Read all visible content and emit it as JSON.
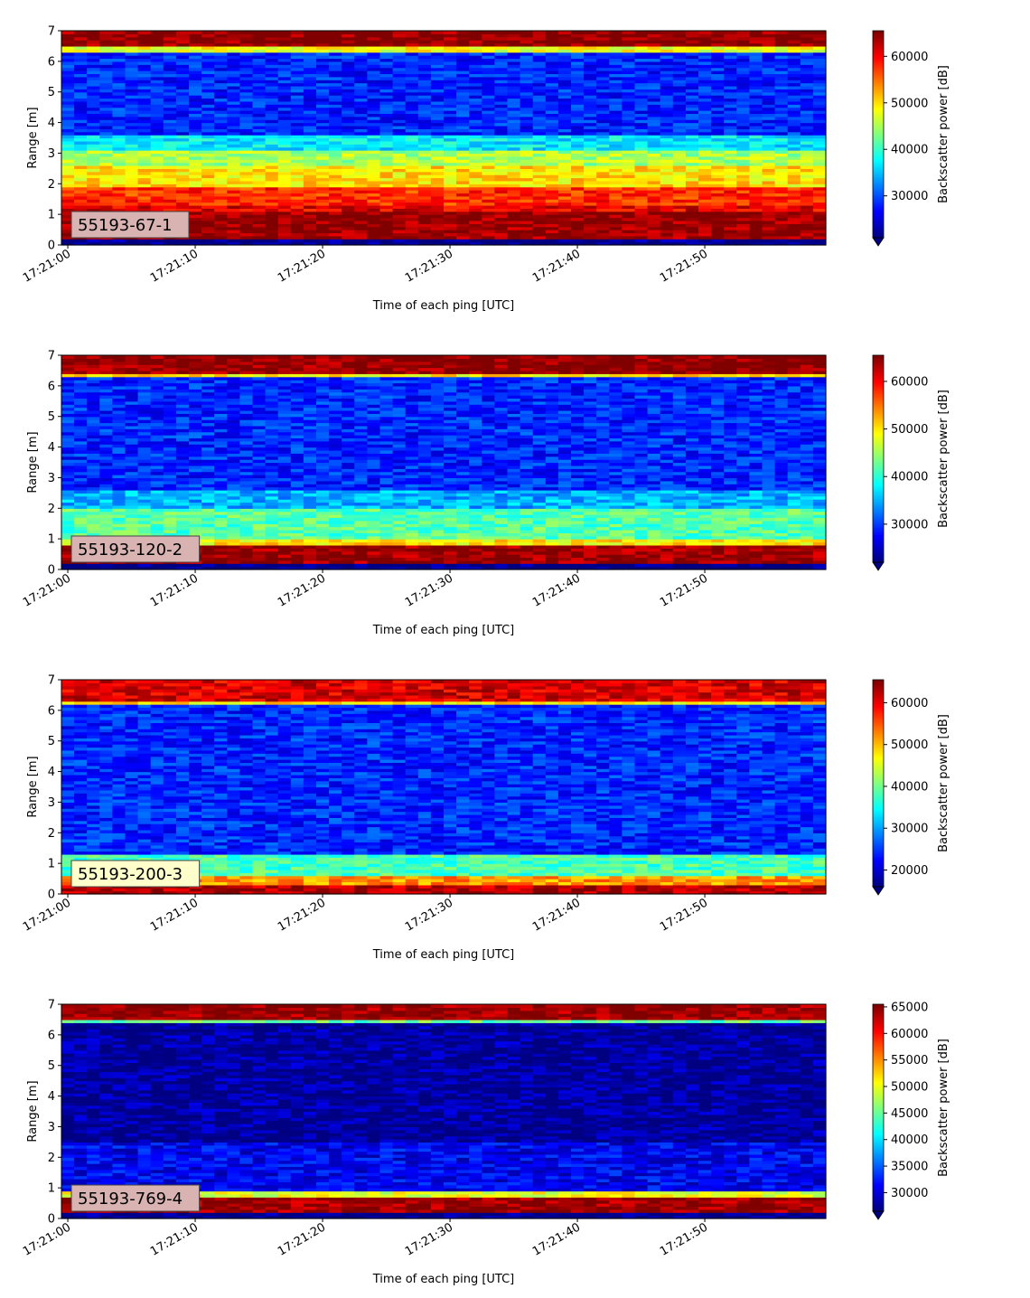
{
  "chart_data": [
    {
      "type": "heatmap",
      "label_box": "55193-67-1",
      "label_box_color": "#d9b2b2",
      "xlabel": "Time of each ping [UTC]",
      "ylabel": "Range [m]",
      "colorbar_label": "Backscatter power [dB]",
      "xticks": [
        "17:21:00",
        "17:21:10",
        "17:21:20",
        "17:21:30",
        "17:21:40",
        "17:21:50"
      ],
      "xlim_seconds": [
        -0.5,
        59.5
      ],
      "ylim": [
        0,
        7
      ],
      "yticks": [
        0,
        1,
        2,
        3,
        4,
        5,
        6,
        7
      ],
      "colorbar_ticks": [
        30000,
        40000,
        50000,
        60000
      ],
      "clim": [
        21000,
        65500
      ],
      "colormap": "jet",
      "bands": [
        {
          "range": [
            0.25,
            1.1
          ],
          "value": 64500
        },
        {
          "range": [
            1.1,
            1.35
          ],
          "value": 61000
        },
        {
          "range": [
            1.35,
            1.95
          ],
          "value": 58000
        },
        {
          "range": [
            1.95,
            2.6
          ],
          "value": 50000
        },
        {
          "range": [
            2.6,
            3.1
          ],
          "value": 45000
        },
        {
          "range": [
            3.1,
            3.6
          ],
          "value": 37000
        },
        {
          "range": [
            3.6,
            6.3
          ],
          "value": 28000
        },
        {
          "range": [
            6.3,
            6.45
          ],
          "value": 48000
        },
        {
          "range": [
            6.45,
            7.0
          ],
          "value": 65000
        }
      ]
    },
    {
      "type": "heatmap",
      "label_box": "55193-120-2",
      "label_box_color": "#d9b2b2",
      "xlabel": "Time of each ping [UTC]",
      "ylabel": "Range [m]",
      "colorbar_label": "Backscatter power [dB]",
      "xticks": [
        "17:21:00",
        "17:21:10",
        "17:21:20",
        "17:21:30",
        "17:21:40",
        "17:21:50"
      ],
      "xlim_seconds": [
        -0.5,
        59.5
      ],
      "ylim": [
        0,
        7
      ],
      "yticks": [
        0,
        1,
        2,
        3,
        4,
        5,
        6,
        7
      ],
      "colorbar_ticks": [
        30000,
        40000,
        50000,
        60000
      ],
      "clim": [
        22000,
        65500
      ],
      "colormap": "jet",
      "bands": [
        {
          "range": [
            0.2,
            0.8
          ],
          "value": 64500
        },
        {
          "range": [
            0.8,
            1.0
          ],
          "value": 50000
        },
        {
          "range": [
            1.0,
            2.0
          ],
          "value": 42000
        },
        {
          "range": [
            2.0,
            2.6
          ],
          "value": 35000
        },
        {
          "range": [
            2.6,
            6.3
          ],
          "value": 29000
        },
        {
          "range": [
            6.3,
            6.4
          ],
          "value": 50000
        },
        {
          "range": [
            6.4,
            7.0
          ],
          "value": 65000
        }
      ]
    },
    {
      "type": "heatmap",
      "label_box": "55193-200-3",
      "label_box_color": "#ffffcc",
      "xlabel": "Time of each ping [UTC]",
      "ylabel": "Range [m]",
      "colorbar_label": "Backscatter power [dB]",
      "xticks": [
        "17:21:00",
        "17:21:10",
        "17:21:20",
        "17:21:30",
        "17:21:40",
        "17:21:50"
      ],
      "xlim_seconds": [
        -0.5,
        59.5
      ],
      "ylim": [
        0,
        7
      ],
      "yticks": [
        0,
        1,
        2,
        3,
        4,
        5,
        6,
        7
      ],
      "colorbar_ticks": [
        20000,
        30000,
        40000,
        50000,
        60000
      ],
      "clim": [
        16000,
        65500
      ],
      "colormap": "jet",
      "bands": [
        {
          "range": [
            0.0,
            0.3
          ],
          "value": 63000
        },
        {
          "range": [
            0.3,
            0.6
          ],
          "value": 52000
        },
        {
          "range": [
            0.6,
            1.3
          ],
          "value": 38000
        },
        {
          "range": [
            1.3,
            6.2
          ],
          "value": 24000
        },
        {
          "range": [
            6.2,
            6.3
          ],
          "value": 48000
        },
        {
          "range": [
            6.3,
            7.0
          ],
          "value": 61000
        }
      ]
    },
    {
      "type": "heatmap",
      "label_box": "55193-769-4",
      "label_box_color": "#d9b2b2",
      "xlabel": "Time of each ping [UTC]",
      "ylabel": "Range [m]",
      "colorbar_label": "Backscatter power [dB]",
      "xticks": [
        "17:21:00",
        "17:21:10",
        "17:21:20",
        "17:21:30",
        "17:21:40",
        "17:21:50"
      ],
      "xlim_seconds": [
        -0.5,
        59.5
      ],
      "ylim": [
        0,
        7
      ],
      "yticks": [
        0,
        1,
        2,
        3,
        4,
        5,
        6,
        7
      ],
      "colorbar_ticks": [
        30000,
        35000,
        40000,
        45000,
        50000,
        55000,
        60000,
        65000
      ],
      "clim": [
        26500,
        65500
      ],
      "colormap": "jet",
      "bands": [
        {
          "range": [
            0.25,
            0.7
          ],
          "value": 64500
        },
        {
          "range": [
            0.7,
            0.9
          ],
          "value": 50000
        },
        {
          "range": [
            0.9,
            2.5
          ],
          "value": 31000
        },
        {
          "range": [
            2.5,
            6.35
          ],
          "value": 27500
        },
        {
          "range": [
            6.35,
            6.45
          ],
          "value": 45000
        },
        {
          "range": [
            6.45,
            6.95
          ],
          "value": 64500
        },
        {
          "range": [
            6.95,
            7.0
          ],
          "value": 60000
        }
      ]
    }
  ]
}
